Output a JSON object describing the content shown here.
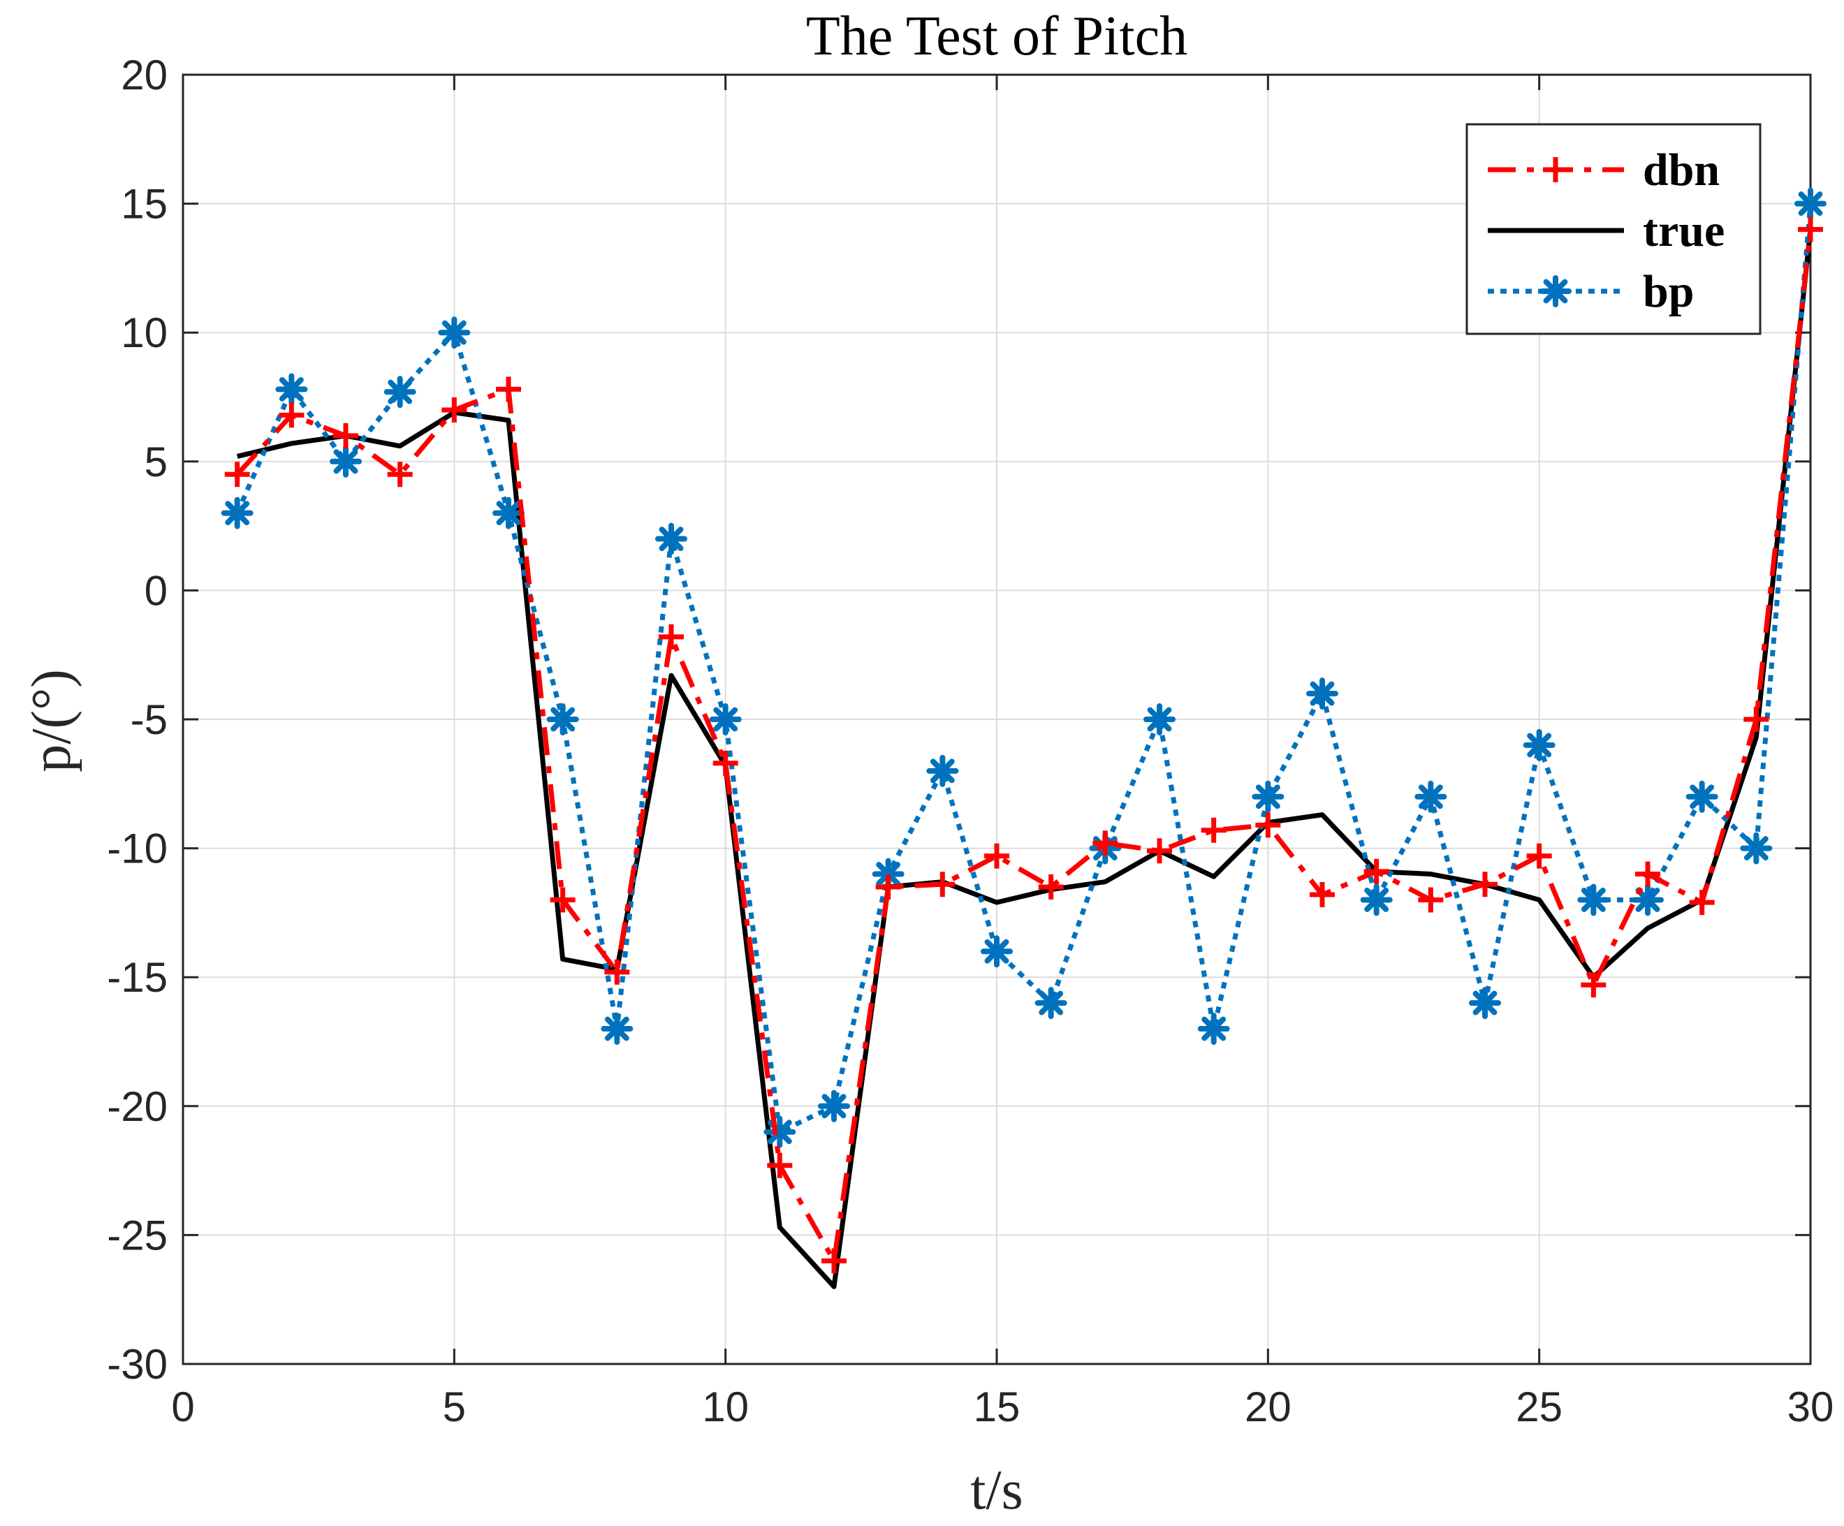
{
  "chart_data": {
    "type": "line",
    "title": "The Test of Pitch",
    "xlabel": "t/s",
    "ylabel": "p/(°)",
    "xlim": [
      0,
      30
    ],
    "ylim": [
      -30,
      20
    ],
    "xticks": [
      0,
      5,
      10,
      15,
      20,
      25,
      30
    ],
    "yticks": [
      -30,
      -25,
      -20,
      -15,
      -10,
      -5,
      0,
      5,
      10,
      15,
      20
    ],
    "grid": true,
    "legend_position": "top-right",
    "x": [
      1,
      2,
      3,
      4,
      5,
      6,
      7,
      8,
      9,
      10,
      11,
      12,
      13,
      14,
      15,
      16,
      17,
      18,
      19,
      20,
      21,
      22,
      23,
      24,
      25,
      26,
      27,
      28,
      29,
      30
    ],
    "series": [
      {
        "name": "dbn",
        "color": "#ff0000",
        "style": "dash-dot",
        "marker": "plus",
        "values": [
          4.5,
          6.8,
          6.0,
          4.5,
          7.0,
          7.8,
          -12.0,
          -14.8,
          -1.8,
          -6.7,
          -22.3,
          -26.0,
          -11.5,
          -11.4,
          -10.3,
          -11.5,
          -9.8,
          -10.1,
          -9.3,
          -9.1,
          -11.8,
          -10.9,
          -12.0,
          -11.4,
          -10.3,
          -15.3,
          -11.0,
          -12.1,
          -5.0,
          14.0
        ]
      },
      {
        "name": "true",
        "color": "#000000",
        "style": "solid",
        "marker": "none",
        "values": [
          5.2,
          5.7,
          6.0,
          5.6,
          6.9,
          6.6,
          -14.3,
          -14.7,
          -3.3,
          -6.8,
          -24.7,
          -27.0,
          -11.5,
          -11.3,
          -12.1,
          -11.6,
          -11.3,
          -10.1,
          -11.1,
          -9.0,
          -8.7,
          -10.9,
          -11.0,
          -11.4,
          -12.0,
          -15.0,
          -13.1,
          -12.0,
          -5.7,
          14.0
        ]
      },
      {
        "name": "bp",
        "color": "#0072bd",
        "style": "dotted",
        "marker": "asterisk",
        "values": [
          3.0,
          7.8,
          5.0,
          7.7,
          10.0,
          3.0,
          -5.0,
          -17.0,
          2.0,
          -5.0,
          -21.0,
          -20.0,
          -11.0,
          -7.0,
          -14.0,
          -16.0,
          -10.0,
          -5.0,
          -17.0,
          -8.0,
          -4.0,
          -12.0,
          -8.0,
          -16.0,
          -6.0,
          -12.0,
          -12.0,
          -8.0,
          -10.0,
          15.0
        ]
      }
    ]
  }
}
